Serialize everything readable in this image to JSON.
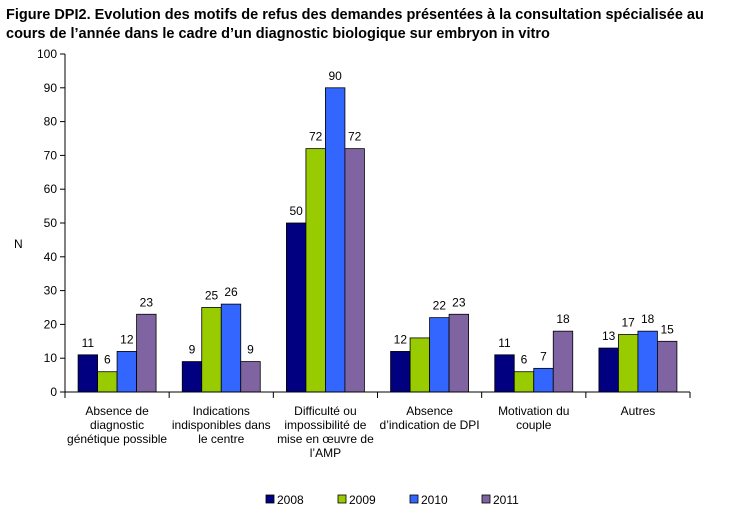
{
  "chart_data": {
    "type": "bar",
    "title": "Figure DPI2. Evolution des motifs de refus des demandes présentées à la consultation spécialisée au cours de l’année dans le cadre d’un diagnostic biologique sur embryon in vitro",
    "xlabel": "",
    "ylabel": "N",
    "ylim": [
      0,
      100
    ],
    "yticks": [
      "0",
      "10",
      "20",
      "30",
      "40",
      "50",
      "60",
      "70",
      "80",
      "90",
      "100"
    ],
    "categories": [
      [
        "Absence de",
        "diagnostic",
        "génétique possible"
      ],
      [
        "Indications",
        "indisponibles dans",
        "le centre"
      ],
      [
        "Difficulté ou",
        "impossibilité de",
        "mise en œuvre de",
        "l’AMP"
      ],
      [
        "Absence",
        "d’indication de DPI"
      ],
      [
        "Motivation du",
        "couple"
      ],
      [
        "Autres"
      ]
    ],
    "series": [
      {
        "name": "2008",
        "color": "#000080",
        "values": [
          11,
          9,
          50,
          12,
          11,
          13
        ]
      },
      {
        "name": "2009",
        "color": "#99CC00",
        "values": [
          6,
          25,
          72,
          16,
          6,
          17
        ]
      },
      {
        "name": "2010",
        "color": "#3366FF",
        "values": [
          12,
          26,
          90,
          22,
          7,
          18
        ]
      },
      {
        "name": "2011",
        "color": "#8064A2",
        "values": [
          23,
          9,
          72,
          23,
          18,
          15
        ]
      }
    ],
    "data_labels": [
      [
        "11",
        "9",
        "50",
        "12",
        "11",
        "13"
      ],
      [
        "6",
        "25",
        "72",
        "",
        "6",
        "17"
      ],
      [
        "12",
        "26",
        "90",
        "22",
        "7",
        "18"
      ],
      [
        "23",
        "9",
        "72",
        "23",
        "18",
        "15"
      ]
    ],
    "grid": false,
    "legend_position": "bottom"
  }
}
